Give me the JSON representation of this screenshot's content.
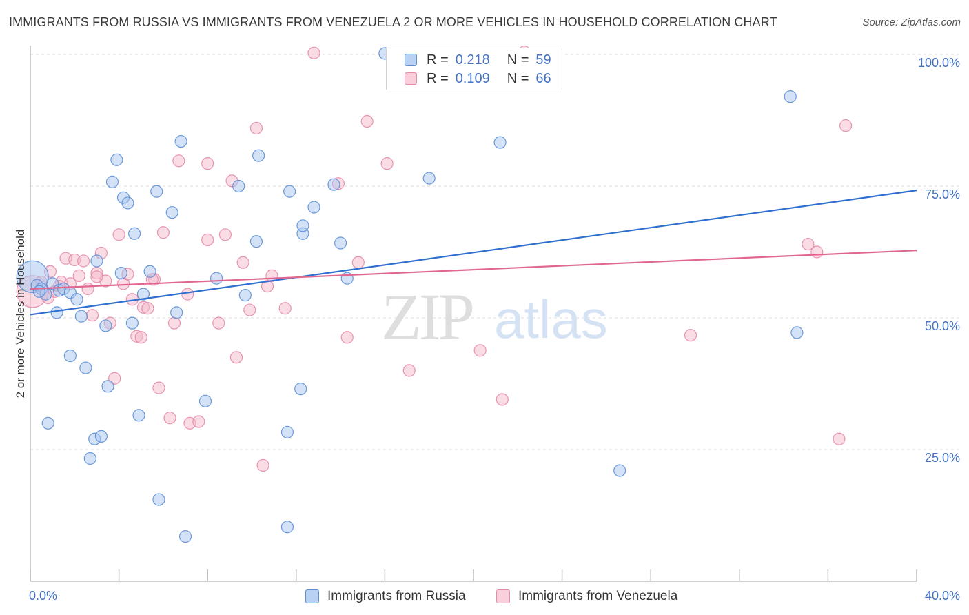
{
  "header": {
    "title": "IMMIGRANTS FROM RUSSIA VS IMMIGRANTS FROM VENEZUELA 2 OR MORE VEHICLES IN HOUSEHOLD CORRELATION CHART",
    "source": "Source: ZipAtlas.com"
  },
  "watermark": {
    "zip": "ZIP",
    "atlas": "atlas"
  },
  "legend": {
    "r_label": "R =",
    "n_label": "N =",
    "russia": {
      "r": "0.218",
      "n": "59"
    },
    "venezuela": {
      "r": "0.109",
      "n": "66"
    }
  },
  "colors": {
    "russia_fill": "#a9c6ef",
    "russia_stroke": "#5b8fd6",
    "russia_line": "#2f6fcf",
    "venezuela_fill": "#f6b9cb",
    "venezuela_stroke": "#e68aa8",
    "venezuela_line": "#e0678f",
    "tick_text": "#4472c4"
  },
  "chart_data": {
    "type": "scatter",
    "title": "IMMIGRANTS FROM RUSSIA VS IMMIGRANTS FROM VENEZUELA 2 OR MORE VEHICLES IN HOUSEHOLD CORRELATION CHART",
    "xlabel": "",
    "ylabel": "2 or more Vehicles in Household",
    "xlim": [
      0,
      40
    ],
    "ylim": [
      0,
      103
    ],
    "x_tick_labels": [
      {
        "value": 0,
        "label": "0.0%"
      },
      {
        "value": 40,
        "label": "40.0%"
      }
    ],
    "x_minor_ticks": [
      0,
      4,
      8,
      12,
      16,
      20,
      24,
      28,
      32,
      36,
      40
    ],
    "y_ticks": [
      {
        "value": 25,
        "label": "25.0%"
      },
      {
        "value": 50,
        "label": "50.0%"
      },
      {
        "value": 75,
        "label": "75.0%"
      },
      {
        "value": 100,
        "label": "100.0%"
      }
    ],
    "grid": true,
    "legend_position": "top-center",
    "series": [
      {
        "name": "Immigrants from Russia",
        "r": 0.218,
        "n": 59,
        "trend": {
          "x": [
            0,
            40
          ],
          "y": [
            50.6,
            74.2
          ]
        },
        "points": [
          [
            0.1,
            57.8,
            "big"
          ],
          [
            0.3,
            56.2
          ],
          [
            0.5,
            55.5
          ],
          [
            0.7,
            54.5
          ],
          [
            1.0,
            56.5
          ],
          [
            1.3,
            55.2
          ],
          [
            1.2,
            51
          ],
          [
            1.5,
            55.5
          ],
          [
            1.8,
            54.8
          ],
          [
            2.1,
            53.5
          ],
          [
            2.3,
            50.3
          ],
          [
            1.8,
            42.8
          ],
          [
            2.5,
            40.5
          ],
          [
            3.0,
            60.8
          ],
          [
            3.4,
            48.5
          ],
          [
            3.5,
            37
          ],
          [
            3.9,
            80
          ],
          [
            3.7,
            75.8
          ],
          [
            4.2,
            72.8
          ],
          [
            4.4,
            71.8
          ],
          [
            4.7,
            66
          ],
          [
            4.1,
            58.5
          ],
          [
            5.1,
            54.5
          ],
          [
            4.6,
            49
          ],
          [
            5.4,
            58.8
          ],
          [
            5.7,
            74
          ],
          [
            6.4,
            70
          ],
          [
            6.6,
            51
          ],
          [
            6.8,
            83.5
          ],
          [
            7.0,
            8.5
          ],
          [
            7.9,
            34.2
          ],
          [
            8.4,
            57.5
          ],
          [
            9.4,
            75
          ],
          [
            9.7,
            54.3
          ],
          [
            10.2,
            64.5
          ],
          [
            10.3,
            80.8
          ],
          [
            11.7,
            74
          ],
          [
            12.3,
            66
          ],
          [
            12.3,
            67.5
          ],
          [
            12.8,
            71
          ],
          [
            13.7,
            75.3
          ],
          [
            14.0,
            64.2
          ],
          [
            14.3,
            57.5
          ],
          [
            12.2,
            36.5
          ],
          [
            11.6,
            28.3
          ],
          [
            11.6,
            10.3
          ],
          [
            4.9,
            31.5
          ],
          [
            2.9,
            27
          ],
          [
            3.2,
            27.5
          ],
          [
            2.7,
            23.3
          ],
          [
            5.8,
            15.5
          ],
          [
            0.8,
            30
          ],
          [
            16.0,
            100.2
          ],
          [
            18.0,
            76.5
          ],
          [
            21.2,
            83.3
          ],
          [
            26.6,
            21
          ],
          [
            34.3,
            92
          ],
          [
            34.6,
            47.2
          ],
          [
            0.4,
            55.0
          ]
        ]
      },
      {
        "name": "Immigrants from Venezuela",
        "r": 0.109,
        "n": 66,
        "trend": {
          "x": [
            0,
            40
          ],
          "y": [
            55.5,
            62.8
          ]
        },
        "points": [
          [
            0.1,
            55,
            "big"
          ],
          [
            0.5,
            56.8
          ],
          [
            0.8,
            53.8
          ],
          [
            0.9,
            58.8
          ],
          [
            1.1,
            55
          ],
          [
            1.4,
            56.8
          ],
          [
            1.6,
            61.3
          ],
          [
            1.8,
            56.5
          ],
          [
            2.0,
            61
          ],
          [
            2.2,
            58
          ],
          [
            2.4,
            60.8
          ],
          [
            2.6,
            55.5
          ],
          [
            2.8,
            50.5
          ],
          [
            3.0,
            58.5
          ],
          [
            3.2,
            62.3
          ],
          [
            3.4,
            57
          ],
          [
            3.6,
            49
          ],
          [
            3.8,
            38.5
          ],
          [
            4.0,
            65.8
          ],
          [
            4.2,
            56.5
          ],
          [
            4.4,
            58.3
          ],
          [
            4.6,
            53.5
          ],
          [
            4.8,
            46.5
          ],
          [
            5.0,
            46.3
          ],
          [
            5.1,
            52
          ],
          [
            5.3,
            51.8
          ],
          [
            5.6,
            57.3
          ],
          [
            5.8,
            36.7
          ],
          [
            6.0,
            66.2
          ],
          [
            6.3,
            31
          ],
          [
            6.5,
            49
          ],
          [
            6.7,
            79.8
          ],
          [
            7.1,
            54.5
          ],
          [
            7.2,
            30
          ],
          [
            7.6,
            30.3
          ],
          [
            8.0,
            79.3
          ],
          [
            8.0,
            64.8
          ],
          [
            8.5,
            49
          ],
          [
            8.8,
            65.8
          ],
          [
            9.1,
            76
          ],
          [
            9.3,
            42.5
          ],
          [
            9.6,
            60.5
          ],
          [
            9.9,
            51.5
          ],
          [
            10.2,
            86
          ],
          [
            10.5,
            22
          ],
          [
            10.7,
            56
          ],
          [
            10.9,
            58
          ],
          [
            11.5,
            51.8
          ],
          [
            12.8,
            100.3
          ],
          [
            13.9,
            75.5
          ],
          [
            14.3,
            46.3
          ],
          [
            14.8,
            60.5
          ],
          [
            15.2,
            87.3
          ],
          [
            16.1,
            79.3
          ],
          [
            17.1,
            40
          ],
          [
            20.3,
            43.8
          ],
          [
            21.3,
            34.5
          ],
          [
            22.3,
            100.5
          ],
          [
            29.8,
            46.7
          ],
          [
            35.1,
            64
          ],
          [
            35.5,
            62.5
          ],
          [
            36.8,
            86.5
          ],
          [
            36.5,
            27
          ],
          [
            5.5,
            57.3
          ],
          [
            3.0,
            57.8
          ],
          [
            1.3,
            56.0
          ]
        ]
      }
    ]
  },
  "bottom_legend": {
    "russia": "Immigrants from Russia",
    "venezuela": "Immigrants from Venezuela"
  }
}
